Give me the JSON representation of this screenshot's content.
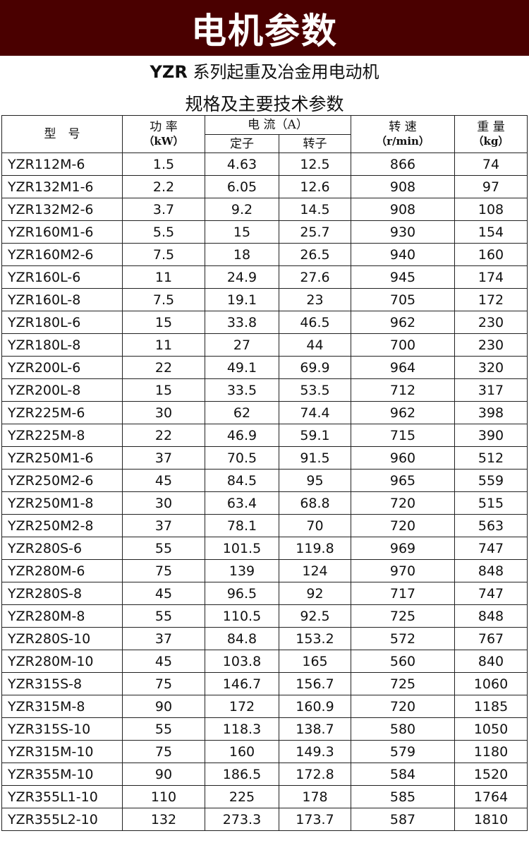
{
  "banner": {
    "title": "电机参数"
  },
  "subtitle": {
    "brand": "YZR",
    "rest": " 系列起重及冶金用电动机",
    "line2": "规格及主要技术参数"
  },
  "headers": {
    "model": "型　号",
    "power": "功 率",
    "power_unit": "（kW）",
    "current": "电 流（A）",
    "stator": "定子",
    "rotor": "转子",
    "speed": "转 速",
    "speed_unit": "（r/min）",
    "weight": "重 量",
    "weight_unit": "（kg）"
  },
  "rows": [
    [
      "YZR112M-6",
      "1.5",
      "4.63",
      "12.5",
      "866",
      "74"
    ],
    [
      "YZR132M1-6",
      "2.2",
      "6.05",
      "12.6",
      "908",
      "97"
    ],
    [
      "YZR132M2-6",
      "3.7",
      "9.2",
      "14.5",
      "908",
      "108"
    ],
    [
      "YZR160M1-6",
      "5.5",
      "15",
      "25.7",
      "930",
      "154"
    ],
    [
      "YZR160M2-6",
      "7.5",
      "18",
      "26.5",
      "940",
      "160"
    ],
    [
      "YZR160L-6",
      "11",
      "24.9",
      "27.6",
      "945",
      "174"
    ],
    [
      "YZR160L-8",
      "7.5",
      "19.1",
      "23",
      "705",
      "172"
    ],
    [
      "YZR180L-6",
      "15",
      "33.8",
      "46.5",
      "962",
      "230"
    ],
    [
      "YZR180L-8",
      "11",
      "27",
      "44",
      "700",
      "230"
    ],
    [
      "YZR200L-6",
      "22",
      "49.1",
      "69.9",
      "964",
      "320"
    ],
    [
      "YZR200L-8",
      "15",
      "33.5",
      "53.5",
      "712",
      "317"
    ],
    [
      "YZR225M-6",
      "30",
      "62",
      "74.4",
      "962",
      "398"
    ],
    [
      "YZR225M-8",
      "22",
      "46.9",
      "59.1",
      "715",
      "390"
    ],
    [
      "YZR250M1-6",
      "37",
      "70.5",
      "91.5",
      "960",
      "512"
    ],
    [
      "YZR250M2-6",
      "45",
      "84.5",
      "95",
      "965",
      "559"
    ],
    [
      "YZR250M1-8",
      "30",
      "63.4",
      "68.8",
      "720",
      "515"
    ],
    [
      "YZR250M2-8",
      "37",
      "78.1",
      "70",
      "720",
      "563"
    ],
    [
      "YZR280S-6",
      "55",
      "101.5",
      "119.8",
      "969",
      "747"
    ],
    [
      "YZR280M-6",
      "75",
      "139",
      "124",
      "970",
      "848"
    ],
    [
      "YZR280S-8",
      "45",
      "96.5",
      "92",
      "717",
      "747"
    ],
    [
      "YZR280M-8",
      "55",
      "110.5",
      "92.5",
      "725",
      "848"
    ],
    [
      "YZR280S-10",
      "37",
      "84.8",
      "153.2",
      "572",
      "767"
    ],
    [
      "YZR280M-10",
      "45",
      "103.8",
      "165",
      "560",
      "840"
    ],
    [
      "YZR315S-8",
      "75",
      "146.7",
      "156.7",
      "725",
      "1060"
    ],
    [
      "YZR315M-8",
      "90",
      "172",
      "160.9",
      "720",
      "1185"
    ],
    [
      "YZR315S-10",
      "55",
      "118.3",
      "138.7",
      "580",
      "1050"
    ],
    [
      "YZR315M-10",
      "75",
      "160",
      "149.3",
      "579",
      "1180"
    ],
    [
      "YZR355M-10",
      "90",
      "186.5",
      "172.8",
      "584",
      "1520"
    ],
    [
      "YZR355L1-10",
      "110",
      "225",
      "178",
      "585",
      "1764"
    ],
    [
      "YZR355L2-10",
      "132",
      "273.3",
      "173.7",
      "587",
      "1810"
    ]
  ]
}
